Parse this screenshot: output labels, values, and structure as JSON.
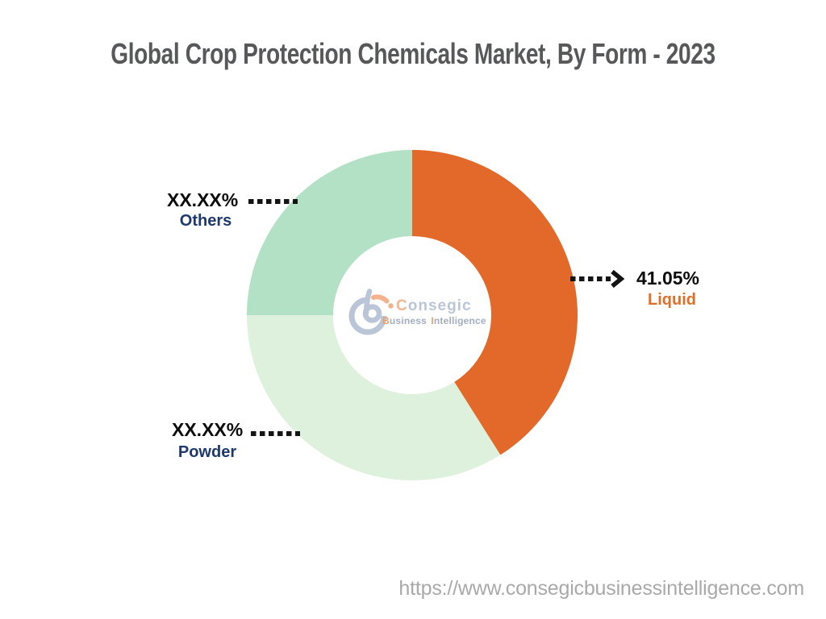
{
  "page": {
    "background_color": "#ffffff",
    "title_color": "#57585a",
    "source_url": "https://www.consegicbusinessintelligence.com"
  },
  "logo": {
    "brand_initial": "C",
    "brand_rest": "onsegic",
    "word1_initial": "B",
    "word1_rest": "usiness",
    "word2_initial": "I",
    "word2_rest": "ntelligence",
    "mark_color": "#bac6d8",
    "accent_color": "#f3b28b"
  },
  "chart_data": {
    "type": "pie",
    "donut": true,
    "title": "Global Crop Protection Chemicals Market, By Form - 2023",
    "start_angle_deg": 0,
    "direction": "clockwise",
    "inner_radius_ratio": 0.48,
    "legend": "none",
    "value_text_color": "#0c0c0c",
    "leader_line_color": "#141414",
    "segments": [
      {
        "label": "Liquid",
        "value_pct": 41.05,
        "display_value": "41.05%",
        "masked": false,
        "color": "#e2692a",
        "label_color": "#e06e26"
      },
      {
        "label": "Powder",
        "value_pct": 33.95,
        "display_value": "XX.XX%",
        "masked": true,
        "color": "#ddf1dc",
        "label_color": "#1d3a6b"
      },
      {
        "label": "Others",
        "value_pct": 25.0,
        "display_value": "XX.XX%",
        "masked": true,
        "color": "#b2e1c5",
        "label_color": "#1d3a6b"
      }
    ]
  }
}
